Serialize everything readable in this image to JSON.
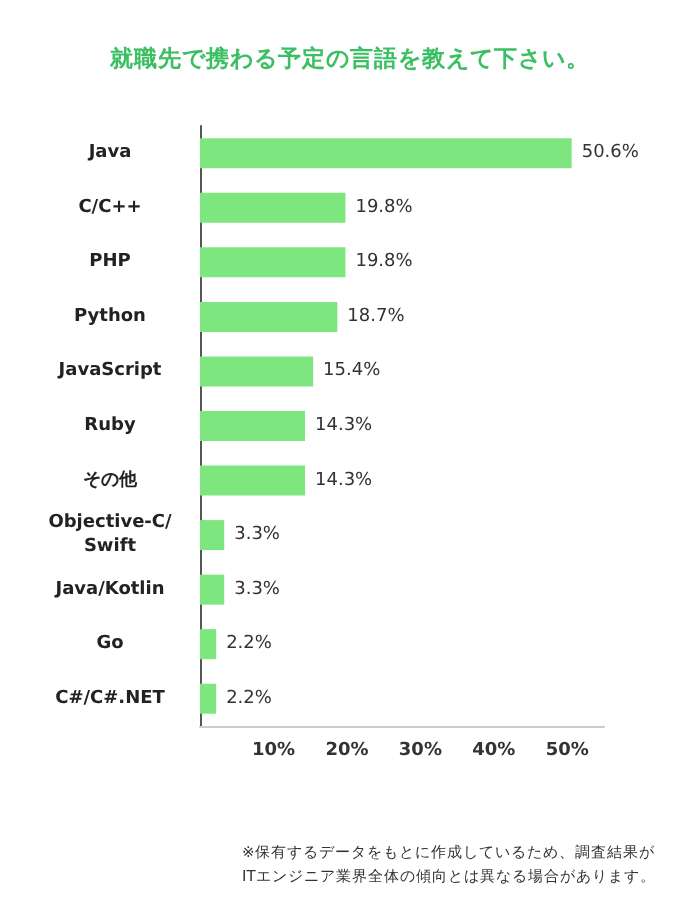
{
  "chart_data": {
    "type": "bar",
    "orientation": "horizontal",
    "title": "就職先で携わる予定の言語を教えて下さい。",
    "categories": [
      "Java",
      "C/C++",
      "PHP",
      "Python",
      "JavaScript",
      "Ruby",
      "その他",
      "Objective-C/Swift",
      "Java/Kotlin",
      "Go",
      "C#/C#.NET"
    ],
    "values": [
      50.6,
      19.8,
      19.8,
      18.7,
      15.4,
      14.3,
      14.3,
      3.3,
      3.3,
      2.2,
      2.2
    ],
    "value_labels": [
      "50.6%",
      "19.8%",
      "19.8%",
      "18.7%",
      "15.4%",
      "14.3%",
      "14.3%",
      "3.3%",
      "3.3%",
      "2.2%",
      "2.2%"
    ],
    "color": "#7ee67e",
    "xlim": [
      0,
      55
    ],
    "xticks": [
      {
        "value": 10,
        "label": "10%"
      },
      {
        "value": 20,
        "label": "20%"
      },
      {
        "value": 30,
        "label": "30%"
      },
      {
        "value": 40,
        "label": "40%"
      },
      {
        "value": 50,
        "label": "50%"
      }
    ],
    "grid": false,
    "annotations": [
      "※保有するデータをもとに作成しているため、調査結果がITエンジニア業界全体の傾向とは異なる場合があります。"
    ]
  }
}
